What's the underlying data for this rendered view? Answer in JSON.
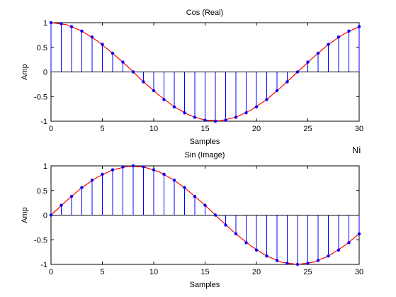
{
  "figure_note": "Ni",
  "colors": {
    "stem": "#0000ff",
    "marker": "#0000ff",
    "curve": "#ff0000",
    "axes": "#000000"
  },
  "chart_data": [
    {
      "type": "stem",
      "title": "Cos (Real)",
      "xlabel": "Samples",
      "ylabel": "Amp",
      "xlim": [
        0,
        30
      ],
      "ylim": [
        -1,
        1
      ],
      "xticks": [
        0,
        5,
        10,
        15,
        20,
        25,
        30
      ],
      "xtick_labels": [
        "0",
        "5",
        "10",
        "15",
        "20",
        "25",
        "30"
      ],
      "yticks": [
        -1,
        -0.5,
        0,
        0.5,
        1
      ],
      "ytick_labels": [
        "-1",
        "-0.5",
        "0",
        "0.5",
        "1"
      ],
      "grid": false,
      "x": [
        0,
        1,
        2,
        3,
        4,
        5,
        6,
        7,
        8,
        9,
        10,
        11,
        12,
        13,
        14,
        15,
        16,
        17,
        18,
        19,
        20,
        21,
        22,
        23,
        24,
        25,
        26,
        27,
        28,
        29,
        30
      ],
      "values": [
        1,
        0.98,
        0.92,
        0.83,
        0.71,
        0.56,
        0.38,
        0.2,
        0,
        -0.2,
        -0.38,
        -0.56,
        -0.71,
        -0.83,
        -0.92,
        -0.98,
        -1,
        -0.98,
        -0.92,
        -0.83,
        -0.71,
        -0.56,
        -0.38,
        -0.2,
        0,
        0.2,
        0.38,
        0.56,
        0.71,
        0.83,
        0.92
      ],
      "curve": {
        "x": [
          0,
          1.5,
          3,
          4.5,
          6,
          7.5,
          9,
          10.5,
          12,
          13.5,
          15,
          16.5,
          18,
          19.5,
          21,
          22.5,
          24,
          25.5,
          27,
          28.5,
          30
        ],
        "y": [
          1,
          0.96,
          0.83,
          0.63,
          0.38,
          0.1,
          -0.2,
          -0.47,
          -0.71,
          -0.88,
          -0.98,
          -0.99,
          -0.92,
          -0.77,
          -0.56,
          -0.29,
          0,
          0.29,
          0.56,
          0.77,
          0.92
        ]
      }
    },
    {
      "type": "stem",
      "title": "Sin (Image)",
      "xlabel": "Samples",
      "ylabel": "Amp",
      "xlim": [
        0,
        30
      ],
      "ylim": [
        -1,
        1
      ],
      "xticks": [
        0,
        5,
        10,
        15,
        20,
        25,
        30
      ],
      "xtick_labels": [
        "0",
        "5",
        "10",
        "15",
        "20",
        "25",
        "30"
      ],
      "yticks": [
        -1,
        -0.5,
        0,
        0.5,
        1
      ],
      "ytick_labels": [
        "-1",
        "-0.5",
        "0",
        "0.5",
        "1"
      ],
      "grid": false,
      "x": [
        0,
        1,
        2,
        3,
        4,
        5,
        6,
        7,
        8,
        9,
        10,
        11,
        12,
        13,
        14,
        15,
        16,
        17,
        18,
        19,
        20,
        21,
        22,
        23,
        24,
        25,
        26,
        27,
        28,
        29,
        30
      ],
      "values": [
        0,
        0.2,
        0.38,
        0.56,
        0.71,
        0.83,
        0.92,
        0.98,
        1,
        0.98,
        0.92,
        0.83,
        0.71,
        0.56,
        0.38,
        0.2,
        0,
        -0.2,
        -0.38,
        -0.56,
        -0.71,
        -0.83,
        -0.92,
        -0.98,
        -1,
        -0.98,
        -0.92,
        -0.83,
        -0.71,
        -0.56,
        -0.38
      ],
      "curve": {
        "x": [
          0,
          1.5,
          3,
          4.5,
          6,
          7.5,
          9,
          10.5,
          12,
          13.5,
          15,
          16.5,
          18,
          19.5,
          21,
          22.5,
          24,
          25.5,
          27,
          28.5,
          30
        ],
        "y": [
          0,
          0.29,
          0.56,
          0.77,
          0.92,
          0.99,
          0.98,
          0.88,
          0.71,
          0.47,
          0.2,
          -0.1,
          -0.38,
          -0.63,
          -0.83,
          -0.96,
          -1,
          -0.96,
          -0.83,
          -0.63,
          -0.38
        ]
      }
    }
  ]
}
